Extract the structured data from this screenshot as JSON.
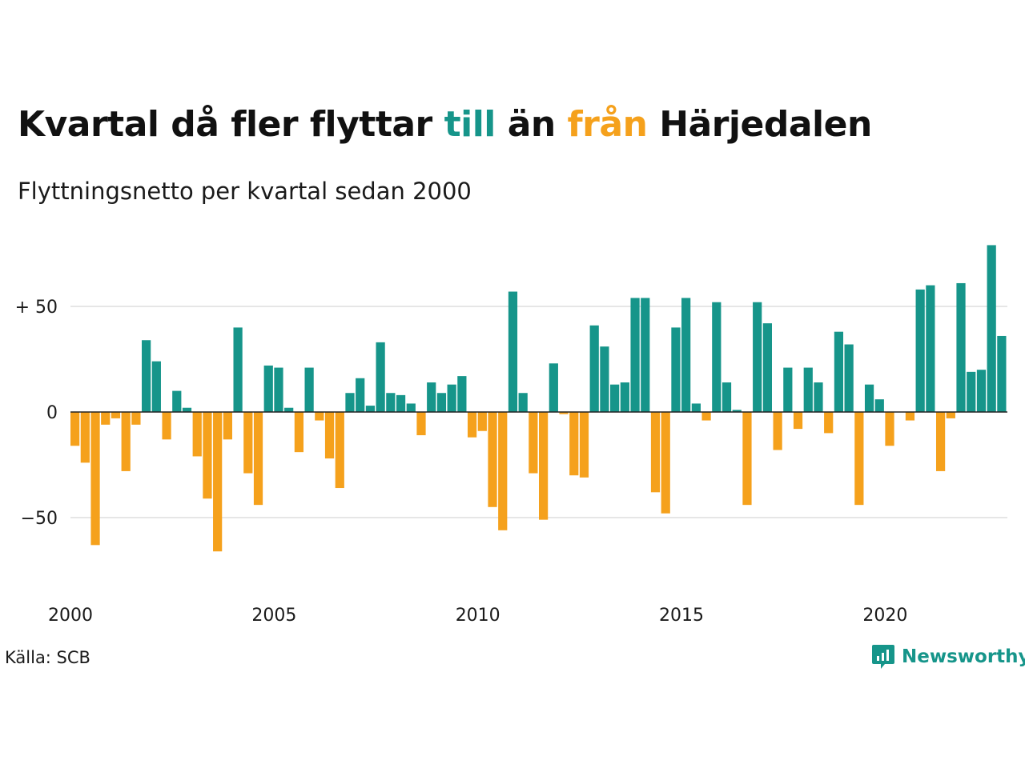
{
  "title": {
    "part1": "Kvartal då fler flyttar",
    "highlight_to": "till",
    "part2": "än",
    "highlight_from": "från",
    "part3": "Härjedalen"
  },
  "subtitle": "Flyttningsnetto per kvartal sedan 2000",
  "source": "Källa: SCB",
  "brand": {
    "name": "Newsworthy",
    "icon": "newsworthy-logo-icon"
  },
  "colors": {
    "positive": "#16958a",
    "negative": "#f5a11c",
    "grid": "#e6e6e6",
    "baseline": "#222222"
  },
  "chart_data": {
    "type": "bar",
    "x_start": "2000 Q1",
    "period": "quarter",
    "values": [
      -16,
      -24,
      -63,
      -6,
      -3,
      -28,
      -6,
      34,
      24,
      -13,
      10,
      2,
      -21,
      -41,
      -66,
      -13,
      40,
      -29,
      -44,
      22,
      21,
      2,
      -19,
      21,
      -4,
      -22,
      -36,
      9,
      16,
      3,
      33,
      9,
      8,
      4,
      -11,
      14,
      9,
      13,
      17,
      -12,
      -9,
      -45,
      -56,
      57,
      9,
      -29,
      -51,
      23,
      -1,
      -30,
      -31,
      41,
      31,
      13,
      14,
      54,
      54,
      -38,
      -48,
      40,
      54,
      4,
      -4,
      52,
      14,
      1,
      -44,
      52,
      42,
      -18,
      21,
      -8,
      21,
      14,
      -10,
      38,
      32,
      -44,
      13,
      6,
      -16,
      0,
      -4,
      58,
      60,
      -28,
      -3,
      61,
      19,
      20,
      79,
      36
    ],
    "x_ticks": [
      "2000",
      "2005",
      "2010",
      "2015",
      "2020"
    ],
    "y_ticks": [
      {
        "value": 50,
        "label": "+ 50"
      },
      {
        "value": 0,
        "label": "0"
      },
      {
        "value": -50,
        "label": "−50"
      }
    ],
    "ylim": [
      -80,
      82
    ],
    "grid": true,
    "legend": "none"
  }
}
